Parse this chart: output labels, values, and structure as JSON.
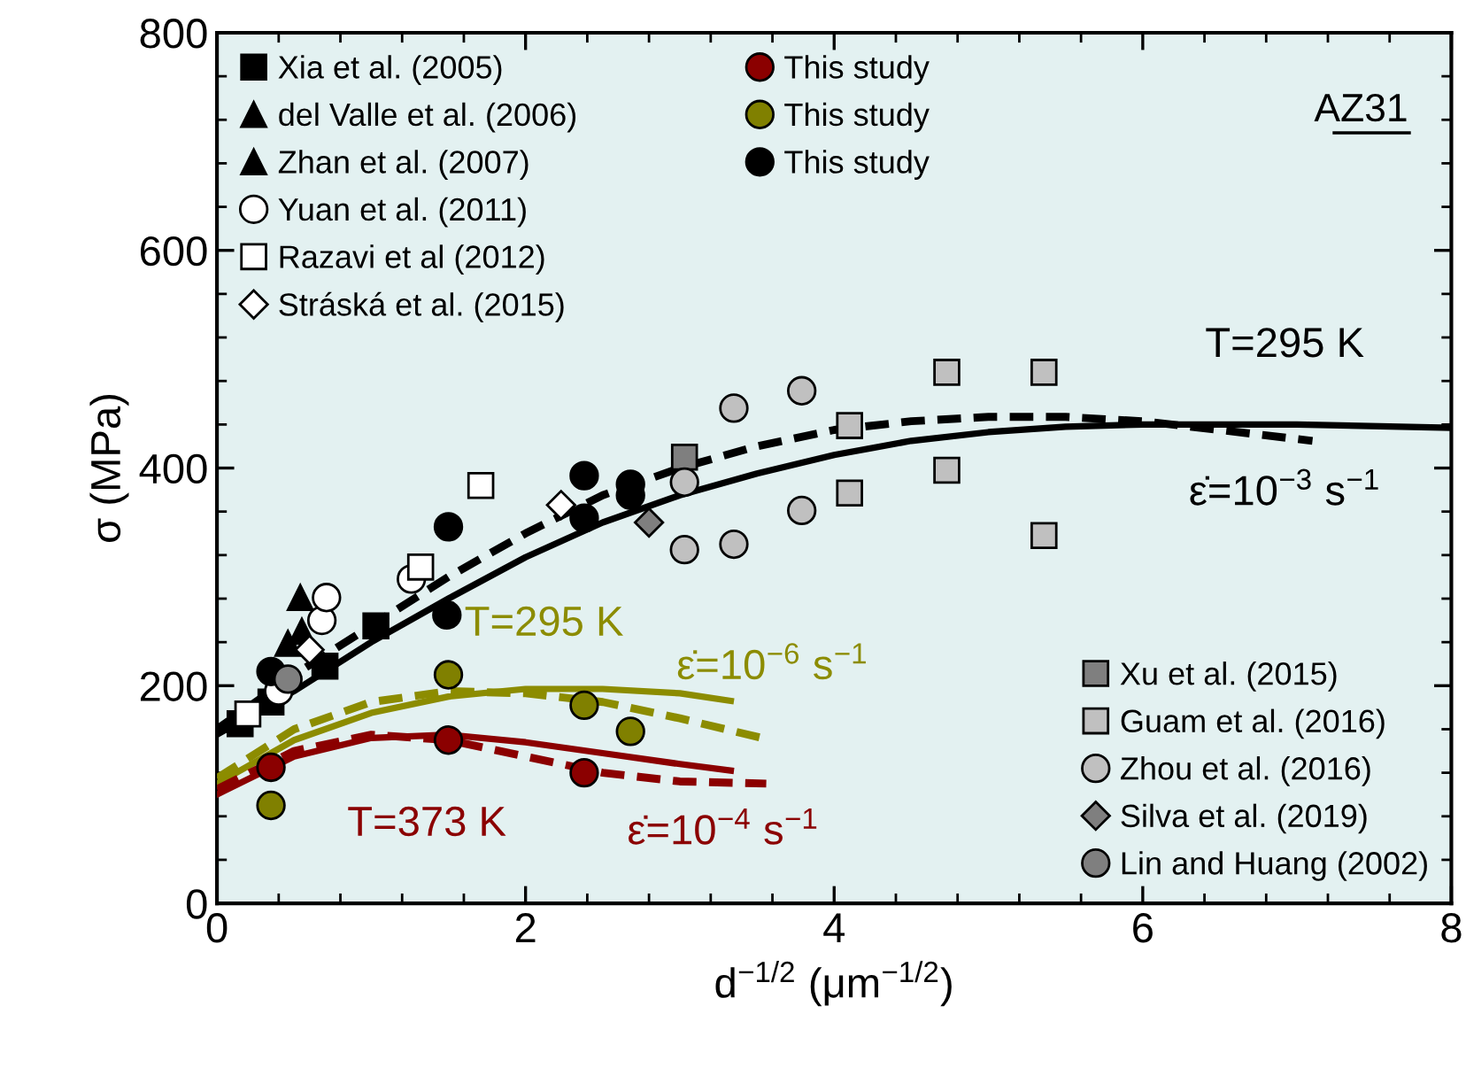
{
  "chart_data": {
    "type": "scatter",
    "xlabel": "d$^{−1/2}$ (μm$^{−1/2}$)",
    "ylabel": "σ (MPa)",
    "xlim": [
      0,
      8
    ],
    "ylim": [
      0,
      800
    ],
    "xticks": [
      0,
      2,
      4,
      6,
      8
    ],
    "yticks": [
      0,
      200,
      400,
      600,
      800
    ],
    "grid": false,
    "legend": "top left",
    "series": [
      {
        "name": "Xia et al. (2005)",
        "color": "#000000",
        "marker": "square",
        "x": [
          0.15,
          0.35,
          0.7,
          1.03
        ],
        "values": [
          165,
          185,
          218,
          255
        ]
      },
      {
        "name": "del Valle et al. (2006)",
        "color": "#000000",
        "marker": "triangle",
        "x": [
          0.46,
          0.54
        ],
        "values": [
          239,
          281
        ]
      },
      {
        "name": "Zhan et al. (2007)",
        "color": "#000000",
        "marker": "triangle",
        "x": [
          0.55
        ],
        "values": [
          250
        ]
      },
      {
        "name": "Yuan et al. (2011)",
        "color": "#ffffff",
        "marker": "circle",
        "x": [
          0.4,
          0.68,
          0.71,
          1.26
        ],
        "values": [
          195,
          260,
          281,
          298
        ]
      },
      {
        "name": "Razavi et al (2012)",
        "color": "#ffffff",
        "marker": "square",
        "x": [
          0.2,
          1.32,
          1.71
        ],
        "values": [
          174,
          309,
          384
        ]
      },
      {
        "name": "Stráská et al. (2015)",
        "color": "#ffffff",
        "marker": "diamond",
        "x": [
          0.6,
          2.23
        ],
        "values": [
          233,
          366
        ]
      },
      {
        "name": "This study",
        "color": "#8b0000",
        "marker": "circle",
        "x": [
          0.35,
          1.5,
          2.38
        ],
        "values": [
          125,
          150,
          120
        ]
      },
      {
        "name": "This study",
        "color": "#808000",
        "marker": "circle",
        "x": [
          0.35,
          1.5,
          2.38,
          2.68
        ],
        "values": [
          90,
          210,
          182,
          158
        ]
      },
      {
        "name": "This study",
        "color": "#000000",
        "marker": "circle",
        "x": [
          0.35,
          1.49,
          1.5,
          2.38,
          2.38,
          2.68,
          2.68
        ],
        "values": [
          213,
          265,
          346,
          393,
          354,
          385,
          375
        ]
      },
      {
        "name": "Xu et al. (2015)",
        "color": "#7f7f7f",
        "marker": "square",
        "x": [
          3.03
        ],
        "values": [
          410
        ]
      },
      {
        "name": "Guam et al. (2016)",
        "color": "#c0c0c0",
        "marker": "square",
        "x": [
          4.1,
          4.1,
          4.73,
          4.73,
          5.36,
          5.36
        ],
        "values": [
          439,
          377,
          488,
          398,
          488,
          338
        ]
      },
      {
        "name": "Zhou et al. (2016)",
        "color": "#c0c0c0",
        "marker": "circle",
        "x": [
          3.03,
          3.03,
          3.35,
          3.35,
          3.79,
          3.79
        ],
        "values": [
          387,
          325,
          455,
          330,
          471,
          361
        ]
      },
      {
        "name": "Silva et al. (2019)",
        "color": "#7f7f7f",
        "marker": "diamond",
        "x": [
          2.8
        ],
        "values": [
          350
        ]
      },
      {
        "name": "Lin and Huang (2002)",
        "color": "#7f7f7f",
        "marker": "circle",
        "x": [
          0.46
        ],
        "values": [
          206
        ]
      },
      {
        "type": "line",
        "color": "#000000",
        "line_style": "solid",
        "x": [
          0,
          0.5,
          1,
          1.5,
          2,
          2.5,
          3,
          3.5,
          4,
          4.5,
          5,
          5.5,
          6,
          7,
          8
        ],
        "values": [
          155,
          195,
          240,
          280,
          318,
          350,
          375,
          395,
          412,
          425,
          433,
          438,
          440,
          440,
          437
        ]
      },
      {
        "type": "line",
        "color": "#000000",
        "line_style": "dashed",
        "x": [
          0,
          0.5,
          1,
          1.5,
          2,
          2.5,
          3,
          3.5,
          4,
          4.5,
          5,
          5.5,
          6,
          6.5,
          7.1
        ],
        "values": [
          160,
          210,
          255,
          300,
          340,
          375,
          400,
          420,
          435,
          443,
          447,
          447,
          443,
          435,
          425
        ]
      },
      {
        "type": "line",
        "color": "#8c8c00",
        "line_style": "solid",
        "x": [
          0,
          0.5,
          1,
          1.5,
          2,
          2.5,
          3,
          3.33
        ],
        "values": [
          110,
          150,
          175,
          190,
          197,
          197,
          193,
          186
        ]
      },
      {
        "type": "line",
        "color": "#8c8c00",
        "line_style": "dashed",
        "x": [
          0,
          0.5,
          1,
          1.5,
          2,
          2.5,
          3,
          3.56
        ],
        "values": [
          115,
          160,
          185,
          195,
          193,
          185,
          170,
          151
        ]
      },
      {
        "type": "line",
        "color": "#8b0000",
        "line_style": "solid",
        "x": [
          0,
          0.5,
          1,
          1.5,
          2,
          2.5,
          3,
          3.33
        ],
        "values": [
          100,
          135,
          152,
          155,
          148,
          138,
          128,
          122
        ]
      },
      {
        "type": "line",
        "color": "#8b0000",
        "line_style": "dashed",
        "x": [
          0,
          0.5,
          1,
          1.5,
          2,
          2.5,
          3,
          3.56
        ],
        "values": [
          105,
          140,
          155,
          150,
          135,
          120,
          112,
          110
        ]
      }
    ],
    "annotations": [
      "AZ31",
      "T=295 K",
      "ε̇=10$^{−3}$ s$^{−1}$",
      "T=295 K",
      "ε̇=10$^{−6}$ s$^{−1}$",
      "T=373 K",
      "ε̇=10$^{−4}$ s$^{−1}$"
    ]
  }
}
